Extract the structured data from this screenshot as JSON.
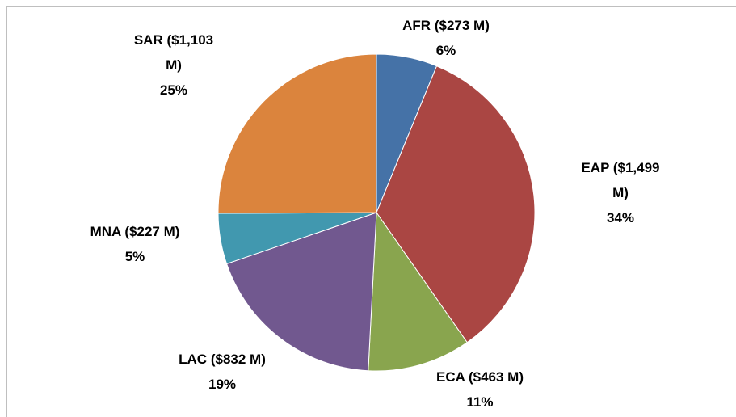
{
  "chart_data": {
    "type": "pie",
    "categories": [
      "AFR",
      "EAP",
      "ECA",
      "LAC",
      "MNA",
      "SAR"
    ],
    "values": [
      273,
      1499,
      463,
      832,
      227,
      1103
    ],
    "value_labels": [
      "($273 M)",
      "($1,499 M)",
      "($463 M)",
      "($832 M)",
      "($227 M)",
      "($1,103 M)"
    ],
    "percent_labels": [
      "6%",
      "34%",
      "11%",
      "19%",
      "5%",
      "25%"
    ],
    "colors": [
      "#4572a7",
      "#aa4643",
      "#89a54e",
      "#71588f",
      "#4198af",
      "#db843d"
    ]
  }
}
